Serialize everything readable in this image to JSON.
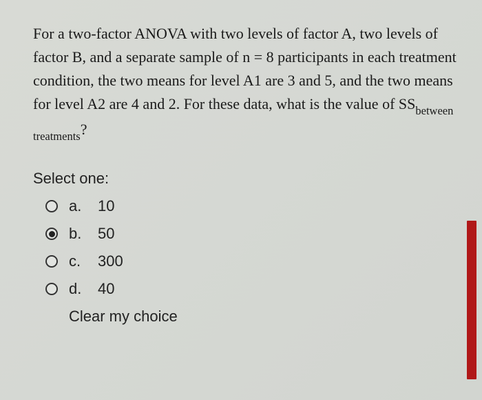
{
  "question": {
    "text_parts": {
      "p1": "For a two-factor ANOVA with two levels of factor A, two levels of factor B, and a separate sample of n = 8 participants in each treatment condition, the two means for level A1 are 3 and 5, and the two means for level A2 are 4 and 2. For these data, what is the value of SS",
      "subscript": "between treatments",
      "p2": "?"
    }
  },
  "select_label": "Select one:",
  "options": [
    {
      "letter": "a.",
      "value": "10",
      "selected": false
    },
    {
      "letter": "b.",
      "value": "50",
      "selected": true
    },
    {
      "letter": "c.",
      "value": "300",
      "selected": false
    },
    {
      "letter": "d.",
      "value": "40",
      "selected": false
    }
  ],
  "clear_label": "Clear my choice",
  "colors": {
    "text": "#1a1a1a",
    "background": "#d5d8d3",
    "scrollbar": "#b01818",
    "radio_border": "#333333"
  },
  "typography": {
    "question_font": "Georgia, Times New Roman, serif",
    "ui_font": "Segoe UI, Arial, sans-serif",
    "question_fontsize": 22,
    "option_fontsize": 22
  }
}
